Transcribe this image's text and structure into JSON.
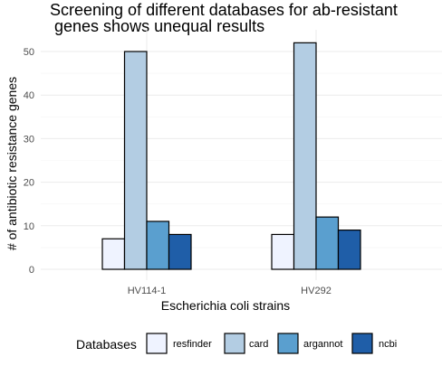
{
  "chart_data": {
    "type": "bar",
    "title_lines": [
      "Screening of different databases for ab-resistant",
      " genes shows unequal results"
    ],
    "xlabel": "Escherichia coli strains",
    "ylabel": "# of antibiotic resistance genes",
    "categories": [
      "HV114-1",
      "HV292"
    ],
    "series": [
      {
        "name": "resfinder",
        "values": [
          7,
          8
        ],
        "color": "#eff3ff"
      },
      {
        "name": "card",
        "values": [
          50,
          52
        ],
        "color": "#b3cde3"
      },
      {
        "name": "argannot",
        "values": [
          11,
          12
        ],
        "color": "#5a9fcf"
      },
      {
        "name": "ncbi",
        "values": [
          8,
          9
        ],
        "color": "#1f5ea8"
      }
    ],
    "y_ticks": [
      0,
      10,
      20,
      30,
      40,
      50
    ],
    "ylim": [
      0,
      54
    ],
    "grid": true,
    "legend": {
      "title": "Databases",
      "position": "bottom"
    }
  }
}
